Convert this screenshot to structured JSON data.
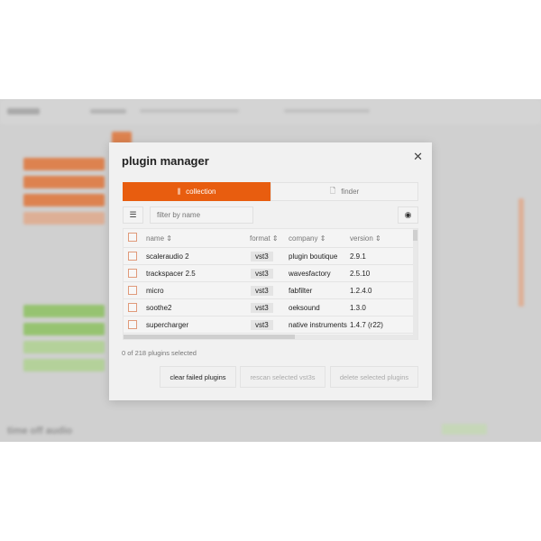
{
  "background": {
    "footer_title": "time off audio"
  },
  "modal": {
    "title": "plugin manager",
    "tabs": [
      {
        "label": "collection",
        "icon": "library-icon"
      },
      {
        "label": "finder",
        "icon": "file-search-icon"
      }
    ],
    "filter": {
      "placeholder": "filter by name"
    },
    "columns": [
      "name",
      "format",
      "company",
      "version"
    ],
    "rows": [
      {
        "name": "scaleraudio 2",
        "format": "vst3",
        "company": "plugin boutique",
        "version": "2.9.1"
      },
      {
        "name": "trackspacer 2.5",
        "format": "vst3",
        "company": "wavesfactory",
        "version": "2.5.10"
      },
      {
        "name": "micro",
        "format": "vst3",
        "company": "fabfilter",
        "version": "1.2.4.0"
      },
      {
        "name": "soothe2",
        "format": "vst3",
        "company": "oeksound",
        "version": "1.3.0"
      },
      {
        "name": "supercharger",
        "format": "vst3",
        "company": "native instruments",
        "version": "1.4.7 (r22)"
      }
    ],
    "status": "0 of 218 plugins selected",
    "buttons": {
      "clear": "clear failed plugins",
      "rescan": "rescan selected vst3s",
      "delete": "delete selected plugins"
    }
  },
  "colors": {
    "accent": "#e85d0f",
    "green": "#7cc142"
  }
}
